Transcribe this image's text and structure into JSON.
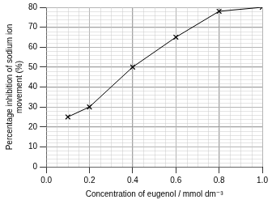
{
  "chart_data": {
    "type": "line",
    "x_label": "Concentration of eugenol / mmol dm⁻³",
    "y_label": "Percentage inhibition of sodium ion movement (%)",
    "x": [
      0.1,
      0.2,
      0.4,
      0.6,
      0.8,
      1.0
    ],
    "values": [
      25,
      30,
      50,
      65,
      78,
      80
    ],
    "color": "#000000",
    "marker": "x",
    "xlim": [
      0,
      1
    ],
    "xticks": [
      {
        "value": 0,
        "label": "0.0"
      },
      0.2,
      0.4,
      0.6,
      0.8,
      {
        "value": 1,
        "label": "1.0"
      }
    ],
    "ylim": [
      0,
      80
    ],
    "yticks": [
      0,
      10,
      20,
      30,
      40,
      50,
      60,
      70,
      80
    ],
    "grid": true
  }
}
